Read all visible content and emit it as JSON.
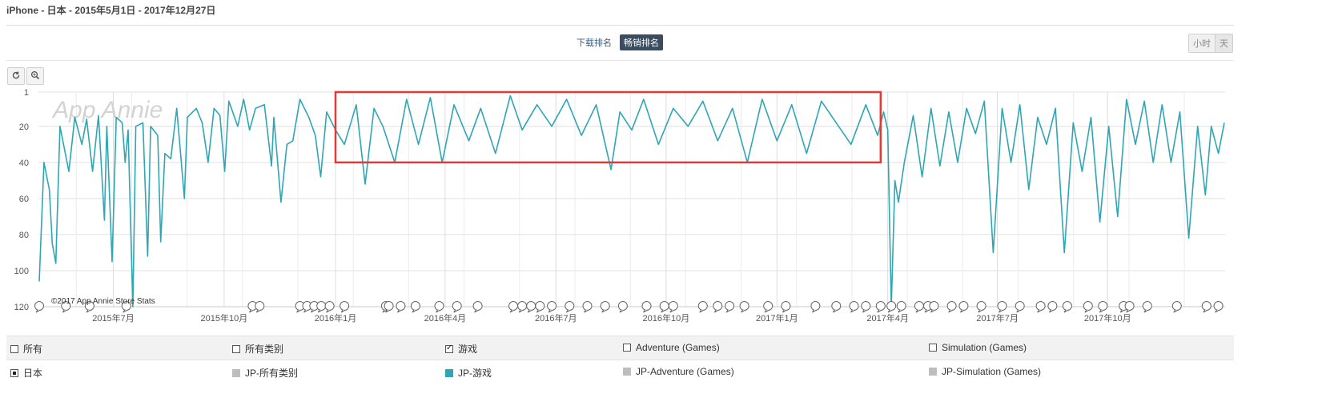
{
  "header": {
    "title": "iPhone - 日本 - 2015年5月1日 - 2017年12月27日",
    "tabs": [
      {
        "label": "下载排名",
        "active": false
      },
      {
        "label": "畅销排名",
        "active": true
      }
    ],
    "granularity": [
      {
        "label": "小时",
        "active": false
      },
      {
        "label": "天",
        "active": true
      }
    ]
  },
  "toolbar": {
    "reset_icon": "reset-zoom-icon",
    "zoom_icon": "zoom-in-icon"
  },
  "chart_data": {
    "type": "line",
    "title": "",
    "watermark": "App Annie",
    "copyright": "©2017 App Annie Store Stats",
    "y_inverted": true,
    "ylim": [
      1,
      120
    ],
    "y_ticks": [
      1,
      20,
      40,
      60,
      80,
      100,
      120
    ],
    "x_ticks": [
      "2015年7月",
      "2015年10月",
      "2016年1月",
      "2016年4月",
      "2016年7月",
      "2016年10月",
      "2017年1月",
      "2017年4月",
      "2017年7月",
      "2017年10月"
    ],
    "grid": true,
    "line_color": "#2ea6b4",
    "highlight_color": "#e53935",
    "highlight_range": {
      "x": [
        "2016年1月",
        "2017年3月"
      ],
      "y": [
        1,
        40
      ]
    },
    "series": [
      {
        "name": "JP-游戏",
        "anchors": [
          {
            "t": 0.0,
            "rank": 106
          },
          {
            "t": 0.008,
            "rank": 40
          },
          {
            "t": 0.017,
            "rank": 55
          },
          {
            "t": 0.022,
            "rank": 85
          },
          {
            "t": 0.028,
            "rank": 96
          },
          {
            "t": 0.035,
            "rank": 20
          },
          {
            "t": 0.05,
            "rank": 45
          },
          {
            "t": 0.06,
            "rank": 15
          },
          {
            "t": 0.072,
            "rank": 30
          },
          {
            "t": 0.08,
            "rank": 16
          },
          {
            "t": 0.09,
            "rank": 45
          },
          {
            "t": 0.1,
            "rank": 14
          },
          {
            "t": 0.11,
            "rank": 72
          },
          {
            "t": 0.114,
            "rank": 20
          },
          {
            "t": 0.123,
            "rank": 95
          },
          {
            "t": 0.13,
            "rank": 15
          },
          {
            "t": 0.14,
            "rank": 18
          },
          {
            "t": 0.145,
            "rank": 40
          },
          {
            "t": 0.15,
            "rank": 22
          },
          {
            "t": 0.158,
            "rank": 120
          },
          {
            "t": 0.163,
            "rank": 20
          },
          {
            "t": 0.175,
            "rank": 18
          },
          {
            "t": 0.183,
            "rank": 92
          },
          {
            "t": 0.188,
            "rank": 20
          },
          {
            "t": 0.2,
            "rank": 25
          },
          {
            "t": 0.205,
            "rank": 84
          },
          {
            "t": 0.212,
            "rank": 35
          },
          {
            "t": 0.222,
            "rank": 38
          },
          {
            "t": 0.232,
            "rank": 10
          },
          {
            "t": 0.245,
            "rank": 60
          },
          {
            "t": 0.25,
            "rank": 15
          },
          {
            "t": 0.265,
            "rank": 10
          },
          {
            "t": 0.275,
            "rank": 18
          },
          {
            "t": 0.285,
            "rank": 40
          },
          {
            "t": 0.295,
            "rank": 10
          },
          {
            "t": 0.305,
            "rank": 14
          },
          {
            "t": 0.313,
            "rank": 45
          },
          {
            "t": 0.32,
            "rank": 6
          },
          {
            "t": 0.335,
            "rank": 20
          },
          {
            "t": 0.345,
            "rank": 5
          },
          {
            "t": 0.355,
            "rank": 22
          },
          {
            "t": 0.365,
            "rank": 10
          },
          {
            "t": 0.38,
            "rank": 8
          },
          {
            "t": 0.392,
            "rank": 42
          },
          {
            "t": 0.396,
            "rank": 15
          },
          {
            "t": 0.408,
            "rank": 62
          },
          {
            "t": 0.418,
            "rank": 30
          },
          {
            "t": 0.428,
            "rank": 28
          },
          {
            "t": 0.44,
            "rank": 5
          },
          {
            "t": 0.455,
            "rank": 15
          },
          {
            "t": 0.466,
            "rank": 25
          },
          {
            "t": 0.475,
            "rank": 48
          },
          {
            "t": 0.485,
            "rank": 12
          },
          {
            "t": 0.5,
            "rank": 22
          },
          {
            "t": 0.515,
            "rank": 30
          },
          {
            "t": 0.535,
            "rank": 8
          },
          {
            "t": 0.55,
            "rank": 52
          },
          {
            "t": 0.565,
            "rank": 10
          },
          {
            "t": 0.58,
            "rank": 20
          },
          {
            "t": 0.6,
            "rank": 40
          },
          {
            "t": 0.62,
            "rank": 5
          },
          {
            "t": 0.64,
            "rank": 30
          },
          {
            "t": 0.66,
            "rank": 4
          },
          {
            "t": 0.68,
            "rank": 40
          },
          {
            "t": 0.7,
            "rank": 8
          },
          {
            "t": 0.725,
            "rank": 28
          },
          {
            "t": 0.745,
            "rank": 10
          },
          {
            "t": 0.77,
            "rank": 35
          },
          {
            "t": 0.795,
            "rank": 3
          },
          {
            "t": 0.815,
            "rank": 22
          },
          {
            "t": 0.84,
            "rank": 8
          },
          {
            "t": 0.865,
            "rank": 20
          },
          {
            "t": 0.89,
            "rank": 5
          },
          {
            "t": 0.915,
            "rank": 25
          },
          {
            "t": 0.94,
            "rank": 8
          },
          {
            "t": 0.965,
            "rank": 44
          },
          {
            "t": 0.98,
            "rank": 12
          },
          {
            "t": 1.0,
            "rank": 22
          },
          {
            "t": 1.02,
            "rank": 5
          },
          {
            "t": 1.045,
            "rank": 30
          },
          {
            "t": 1.07,
            "rank": 10
          },
          {
            "t": 1.095,
            "rank": 20
          },
          {
            "t": 1.12,
            "rank": 6
          },
          {
            "t": 1.145,
            "rank": 28
          },
          {
            "t": 1.17,
            "rank": 10
          },
          {
            "t": 1.195,
            "rank": 40
          },
          {
            "t": 1.22,
            "rank": 5
          },
          {
            "t": 1.245,
            "rank": 28
          },
          {
            "t": 1.27,
            "rank": 8
          },
          {
            "t": 1.295,
            "rank": 35
          },
          {
            "t": 1.32,
            "rank": 6
          },
          {
            "t": 1.345,
            "rank": 18
          },
          {
            "t": 1.37,
            "rank": 30
          },
          {
            "t": 1.395,
            "rank": 8
          },
          {
            "t": 1.415,
            "rank": 25
          },
          {
            "t": 1.425,
            "rank": 12
          },
          {
            "t": 1.432,
            "rank": 22
          },
          {
            "t": 1.438,
            "rank": 120
          },
          {
            "t": 1.444,
            "rank": 50
          },
          {
            "t": 1.45,
            "rank": 62
          },
          {
            "t": 1.46,
            "rank": 40
          },
          {
            "t": 1.475,
            "rank": 14
          },
          {
            "t": 1.49,
            "rank": 48
          },
          {
            "t": 1.505,
            "rank": 10
          },
          {
            "t": 1.52,
            "rank": 42
          },
          {
            "t": 1.535,
            "rank": 12
          },
          {
            "t": 1.55,
            "rank": 40
          },
          {
            "t": 1.565,
            "rank": 10
          },
          {
            "t": 1.58,
            "rank": 24
          },
          {
            "t": 1.595,
            "rank": 6
          },
          {
            "t": 1.61,
            "rank": 90
          },
          {
            "t": 1.625,
            "rank": 10
          },
          {
            "t": 1.64,
            "rank": 40
          },
          {
            "t": 1.655,
            "rank": 8
          },
          {
            "t": 1.67,
            "rank": 55
          },
          {
            "t": 1.685,
            "rank": 15
          },
          {
            "t": 1.7,
            "rank": 30
          },
          {
            "t": 1.715,
            "rank": 10
          },
          {
            "t": 1.73,
            "rank": 90
          },
          {
            "t": 1.745,
            "rank": 18
          },
          {
            "t": 1.76,
            "rank": 45
          },
          {
            "t": 1.775,
            "rank": 15
          },
          {
            "t": 1.79,
            "rank": 73
          },
          {
            "t": 1.805,
            "rank": 20
          },
          {
            "t": 1.82,
            "rank": 70
          },
          {
            "t": 1.835,
            "rank": 5
          },
          {
            "t": 1.85,
            "rank": 30
          },
          {
            "t": 1.865,
            "rank": 6
          },
          {
            "t": 1.88,
            "rank": 40
          },
          {
            "t": 1.895,
            "rank": 8
          },
          {
            "t": 1.91,
            "rank": 40
          },
          {
            "t": 1.925,
            "rank": 12
          },
          {
            "t": 1.94,
            "rank": 82
          },
          {
            "t": 1.955,
            "rank": 20
          },
          {
            "t": 1.968,
            "rank": 58
          },
          {
            "t": 1.978,
            "rank": 20
          },
          {
            "t": 1.99,
            "rank": 35
          },
          {
            "t": 2.0,
            "rank": 18
          }
        ]
      }
    ],
    "event_markers": [
      0.0,
      0.045,
      0.085,
      0.147,
      0.36,
      0.372,
      0.44,
      0.452,
      0.464,
      0.476,
      0.49,
      0.515,
      0.585,
      0.59,
      0.61,
      0.635,
      0.675,
      0.705,
      0.74,
      0.8,
      0.815,
      0.83,
      0.845,
      0.865,
      0.895,
      0.925,
      0.955,
      0.985,
      1.025,
      1.055,
      1.07,
      1.12,
      1.145,
      1.165,
      1.19,
      1.23,
      1.26,
      1.31,
      1.345,
      1.375,
      1.395,
      1.42,
      1.438,
      1.455,
      1.485,
      1.5,
      1.51,
      1.54,
      1.56,
      1.59,
      1.625,
      1.655,
      1.69,
      1.71,
      1.735,
      1.77,
      1.795,
      1.83,
      1.84,
      1.87,
      1.92,
      1.97,
      1.99
    ]
  },
  "legend": {
    "row1": [
      {
        "label": "所有",
        "state": "unchecked"
      },
      {
        "label": "所有类别",
        "state": "unchecked"
      },
      {
        "label": "游戏",
        "state": "checked"
      },
      {
        "label": "Adventure (Games)",
        "state": "unchecked"
      },
      {
        "label": "Simulation (Games)",
        "state": "unchecked"
      }
    ],
    "row2": [
      {
        "label": "日本",
        "state": "filled",
        "color": "#222222"
      },
      {
        "label": "JP-所有类别",
        "color": "#bdbdbd"
      },
      {
        "label": "JP-游戏",
        "color": "#2ea6b4"
      },
      {
        "label": "JP-Adventure (Games)",
        "color": "#bdbdbd"
      },
      {
        "label": "JP-Simulation (Games)",
        "color": "#bdbdbd"
      }
    ]
  }
}
